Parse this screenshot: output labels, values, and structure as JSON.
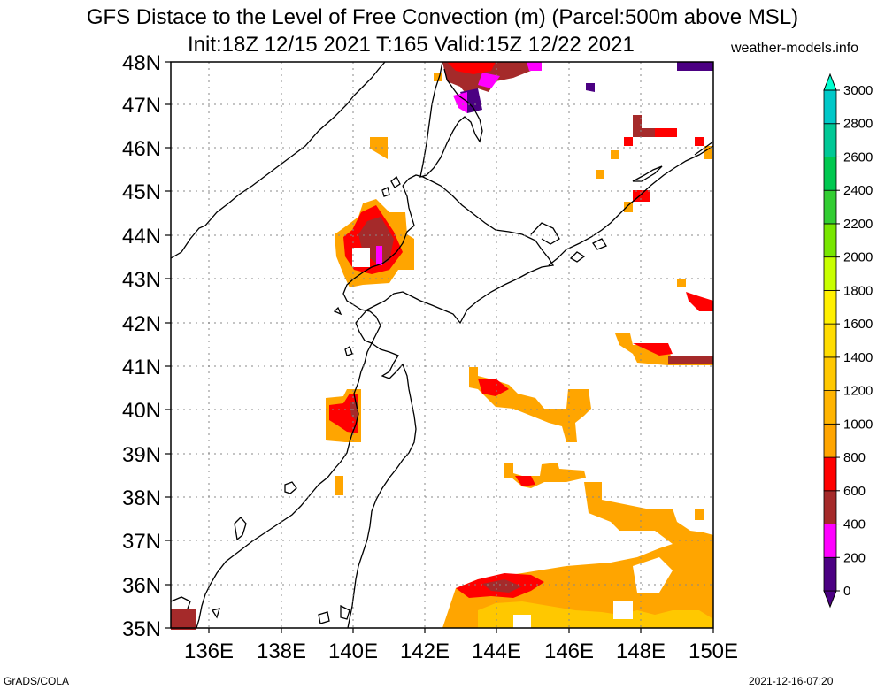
{
  "title_line1": "GFS Distace to the Level of Free Convection (m) (Parcel:500m above MSL)",
  "title_line2": "Init:18Z 12/15 2021 T:165 Valid:15Z 12/22 2021",
  "site": "weather-models.info",
  "footer_left": "GrADS/COLA",
  "footer_right": "2021-12-16-07:20",
  "lat_labels": [
    "48N",
    "47N",
    "46N",
    "45N",
    "44N",
    "43N",
    "42N",
    "41N",
    "40N",
    "39N",
    "38N",
    "37N",
    "36N",
    "35N"
  ],
  "lon_labels": [
    "136E",
    "138E",
    "140E",
    "142E",
    "144E",
    "146E",
    "148E",
    "150E"
  ],
  "colorbar": {
    "labels": [
      "3000",
      "2800",
      "2600",
      "2400",
      "2200",
      "2000",
      "1800",
      "1600",
      "1400",
      "1200",
      "1000",
      "800",
      "600",
      "400",
      "200",
      "0"
    ],
    "colors": [
      "#4b0082",
      "#ff00ff",
      "#a52a2a",
      "#ff0000",
      "#ffa500",
      "#ffb400",
      "#ffc800",
      "#ffdc00",
      "#fff000",
      "#c8ff00",
      "#78e600",
      "#32cd32",
      "#00c850",
      "#00c896",
      "#00c8c8",
      "#00e6e6"
    ],
    "top_arrow_color": "#00ffd0",
    "bottom_arrow_color": "#4b0082"
  }
}
